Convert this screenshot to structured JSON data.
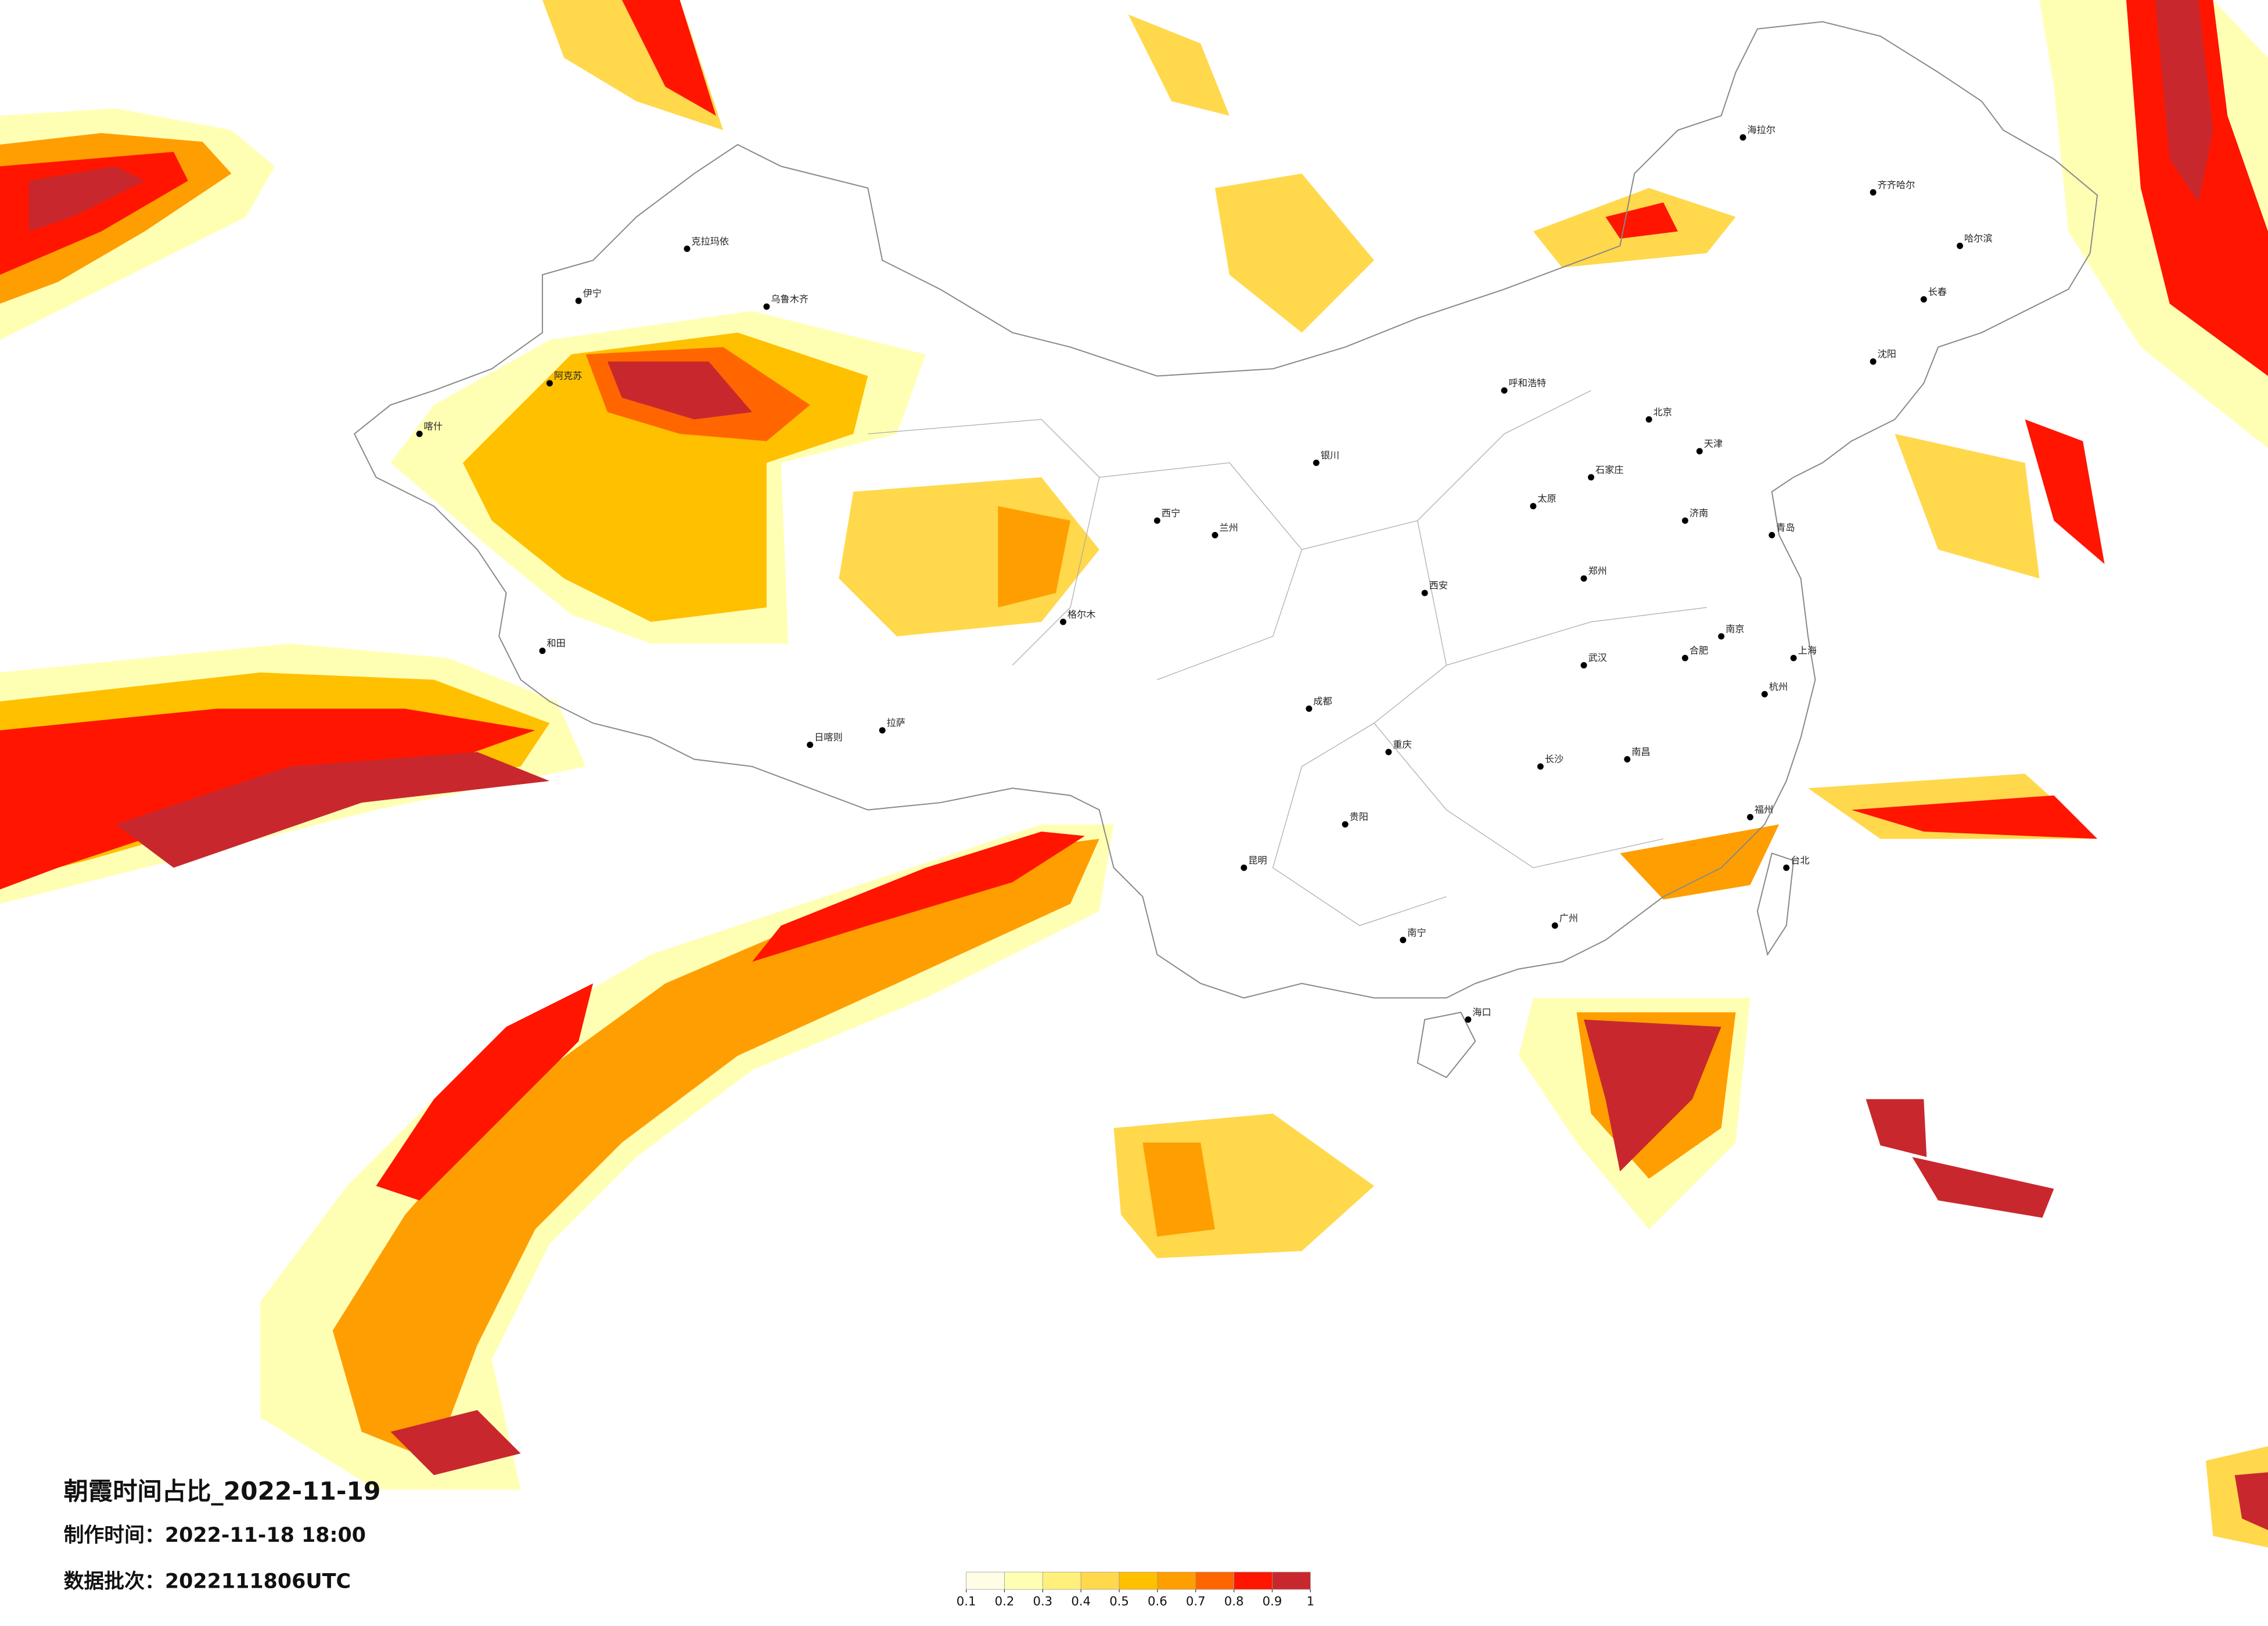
{
  "header": {
    "title": "朝霞时间占比_2022-11-19",
    "made_time": "制作时间：2022-11-18 18:00",
    "data_batch": "数据批次：2022111806UTC"
  },
  "colorbar": {
    "ticks": [
      0.1,
      0.2,
      0.3,
      0.4,
      0.5,
      0.6,
      0.7,
      0.8,
      0.9,
      1
    ],
    "colors": [
      "#fffde6",
      "#ffffb4",
      "#fff07c",
      "#ffd84c",
      "#ffc000",
      "#ff9e00",
      "#ff6600",
      "#ff1500",
      "#c8282d"
    ]
  },
  "cities": [
    "海拉尔",
    "齐齐哈尔",
    "哈尔滨",
    "长春",
    "沈阳",
    "北京",
    "天津",
    "呼和浩特",
    "石家庄",
    "太原",
    "济南",
    "郑州",
    "西安",
    "兰州",
    "西宁",
    "银川",
    "乌鲁木齐",
    "克拉玛依",
    "伊宁",
    "阿克苏",
    "喀什",
    "和田",
    "拉萨",
    "日喀则",
    "成都",
    "重庆",
    "贵阳",
    "昆明",
    "南宁",
    "广州",
    "武汉",
    "长沙",
    "南昌",
    "南京",
    "上海",
    "杭州",
    "福州",
    "台北",
    "海口",
    "合肥",
    "青岛",
    "格尔木"
  ]
}
